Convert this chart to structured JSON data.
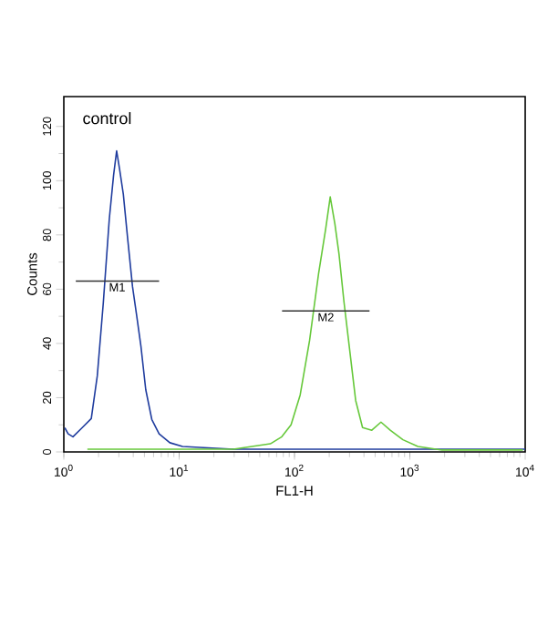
{
  "chart_data": {
    "type": "line",
    "xlabel": "FL1-H",
    "ylabel": "Counts",
    "xlim": [
      1,
      10000
    ],
    "ylim": [
      0,
      131
    ],
    "log": "x",
    "grid": false,
    "marker": "none",
    "line_style": "solid",
    "xticks": [
      {
        "value": 1,
        "label": "10$^{0}$"
      },
      {
        "value": 10,
        "label": "10$^{1}$"
      },
      {
        "value": 100,
        "label": "10$^{2}$"
      },
      {
        "value": 1000,
        "label": "10$^{3}$"
      },
      {
        "value": 10000,
        "label": "10$^{4}$"
      }
    ],
    "yticks": [
      0,
      20,
      40,
      60,
      80,
      100,
      120
    ],
    "series": [
      {
        "color": "#1f3c9e",
        "x": [
          1.02,
          1.09,
          1.2,
          1.44,
          1.73,
          1.95,
          2.2,
          2.48,
          2.7,
          2.87,
          3.05,
          3.28,
          3.57,
          3.94,
          4.29,
          4.66,
          5.13,
          5.79,
          6.7,
          8.3,
          10.7,
          30,
          100,
          1000,
          10000
        ],
        "values": [
          8.9,
          6.7,
          5.6,
          8.9,
          12.3,
          28,
          55,
          86,
          102,
          111,
          104,
          95,
          79,
          61,
          50,
          39,
          23,
          12,
          6.7,
          3.4,
          2,
          1,
          1,
          1,
          1
        ]
      },
      {
        "color": "#66c83a",
        "x": [
          1.6,
          5,
          15,
          29.5,
          61.7,
          77.6,
          93.3,
          112,
          135,
          162,
          186,
          204,
          224,
          243,
          269,
          302,
          339,
          389,
          468,
          562,
          676,
          871,
          1175,
          1905,
          9550
        ],
        "values": [
          1,
          1,
          1,
          1,
          3,
          5.6,
          10,
          21,
          41,
          66,
          82,
          94,
          84,
          73,
          55,
          37,
          19,
          9,
          8,
          11,
          8,
          4.5,
          2,
          0.7,
          0.7
        ]
      },
      {
        "type": "line",
        "color": "#333333",
        "x": [
          1.27,
          6.7
        ],
        "values": [
          63,
          63
        ]
      },
      {
        "type": "line",
        "color": "#333333",
        "x": [
          78,
          447
        ],
        "values": [
          52,
          52
        ]
      }
    ],
    "annotations": [
      "control",
      {
        "text": "M1",
        "x": 2.9,
        "y": 63
      },
      {
        "text": "M2",
        "x": 187,
        "y": 52
      }
    ]
  }
}
